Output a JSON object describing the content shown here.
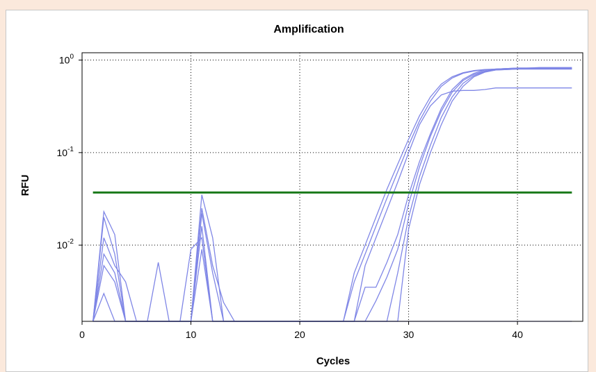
{
  "chart_data": {
    "type": "line",
    "title": "Amplification",
    "xlabel": "Cycles",
    "ylabel": "RFU",
    "xlim": [
      0,
      46
    ],
    "ylim": [
      0.0015,
      1.2
    ],
    "yscale": "log",
    "grid": true,
    "x_ticks": [
      {
        "value": 0,
        "label": "0"
      },
      {
        "value": 10,
        "label": "10"
      },
      {
        "value": 20,
        "label": "20"
      },
      {
        "value": 30,
        "label": "30"
      },
      {
        "value": 40,
        "label": "40"
      }
    ],
    "y_ticks": [
      {
        "value": 1,
        "base": "10",
        "exp": "0"
      },
      {
        "value": 0.1,
        "base": "10",
        "exp": "-1"
      },
      {
        "value": 0.01,
        "base": "10",
        "exp": "-2"
      }
    ],
    "threshold": {
      "value": 0.037,
      "x": [
        1,
        45
      ],
      "color": "#1a7a1a"
    },
    "series_color": "#7f86e6",
    "series": [
      {
        "x": [
          1,
          2,
          3,
          4,
          5,
          6,
          7,
          8,
          9,
          10,
          11,
          12,
          13,
          14,
          15,
          16,
          17,
          18,
          19,
          20,
          21,
          22,
          23,
          24,
          25,
          26,
          27,
          28,
          29,
          30,
          31,
          32,
          33,
          34,
          35,
          36,
          37,
          38,
          39,
          40,
          41,
          42,
          43,
          44,
          45
        ],
        "y": [
          0.0015,
          0.023,
          0.013,
          0.0015,
          0.0015,
          0.0015,
          0.0015,
          0.0015,
          0.0015,
          0.0015,
          0.035,
          0.012,
          0.0015,
          0.0015,
          0.0015,
          0.0015,
          0.0015,
          0.0015,
          0.0015,
          0.0015,
          0.0015,
          0.0015,
          0.0015,
          0.0015,
          0.004,
          0.008,
          0.016,
          0.032,
          0.062,
          0.12,
          0.22,
          0.36,
          0.52,
          0.64,
          0.72,
          0.76,
          0.78,
          0.8,
          0.81,
          0.82,
          0.82,
          0.83,
          0.83,
          0.83,
          0.83
        ]
      },
      {
        "x": [
          1,
          2,
          3,
          4,
          5,
          6,
          7,
          8,
          9,
          10,
          11,
          12,
          13,
          14,
          15,
          16,
          17,
          18,
          19,
          20,
          21,
          22,
          23,
          24,
          25,
          26,
          27,
          28,
          29,
          30,
          31,
          32,
          33,
          34,
          35,
          36,
          37,
          38,
          39,
          40,
          41,
          42,
          43,
          44,
          45
        ],
        "y": [
          0.0015,
          0.02,
          0.008,
          0.0015,
          0.0015,
          0.0015,
          0.0015,
          0.0015,
          0.0015,
          0.0015,
          0.025,
          0.006,
          0.0024,
          0.0015,
          0.0015,
          0.0015,
          0.0015,
          0.0015,
          0.0015,
          0.0015,
          0.0015,
          0.0015,
          0.0015,
          0.0015,
          0.005,
          0.01,
          0.02,
          0.04,
          0.075,
          0.14,
          0.25,
          0.4,
          0.55,
          0.66,
          0.73,
          0.77,
          0.79,
          0.8,
          0.81,
          0.82,
          0.82,
          0.82,
          0.82,
          0.82,
          0.82
        ]
      },
      {
        "x": [
          1,
          2,
          3,
          4,
          5,
          6,
          7,
          8,
          9,
          10,
          11,
          12,
          13,
          14,
          15,
          16,
          17,
          18,
          19,
          20,
          21,
          22,
          23,
          24,
          25,
          26,
          27,
          28,
          29,
          30,
          31,
          32,
          33,
          34,
          35,
          36,
          37,
          38,
          39,
          40,
          41,
          42,
          43,
          44,
          45
        ],
        "y": [
          0.0015,
          0.012,
          0.006,
          0.004,
          0.0015,
          0.0015,
          0.0065,
          0.0015,
          0.0015,
          0.0015,
          0.016,
          0.0015,
          0.0015,
          0.0015,
          0.0015,
          0.0015,
          0.0015,
          0.0015,
          0.0015,
          0.0015,
          0.0015,
          0.0015,
          0.0015,
          0.0015,
          0.0015,
          0.0035,
          0.0035,
          0.0065,
          0.013,
          0.035,
          0.08,
          0.16,
          0.3,
          0.48,
          0.62,
          0.72,
          0.78,
          0.8,
          0.81,
          0.81,
          0.82,
          0.82,
          0.82,
          0.82,
          0.82
        ]
      },
      {
        "x": [
          1,
          2,
          3,
          4,
          5,
          6,
          7,
          8,
          9,
          10,
          11,
          12,
          13,
          14,
          15,
          16,
          17,
          18,
          19,
          20,
          21,
          22,
          23,
          24,
          25,
          26,
          27,
          28,
          29,
          30,
          31,
          32,
          33,
          34,
          35,
          36,
          37,
          38,
          39,
          40,
          41,
          42,
          43,
          44,
          45
        ],
        "y": [
          0.0015,
          0.008,
          0.005,
          0.0015,
          0.0015,
          0.0015,
          0.0015,
          0.0015,
          0.0015,
          0.009,
          0.012,
          0.0015,
          0.0015,
          0.0015,
          0.0015,
          0.0015,
          0.0015,
          0.0015,
          0.0015,
          0.0015,
          0.0015,
          0.0015,
          0.0015,
          0.0015,
          0.0015,
          0.0015,
          0.0025,
          0.0045,
          0.009,
          0.028,
          0.07,
          0.15,
          0.28,
          0.45,
          0.6,
          0.7,
          0.76,
          0.79,
          0.8,
          0.81,
          0.81,
          0.81,
          0.81,
          0.81,
          0.81
        ]
      },
      {
        "x": [
          1,
          2,
          3,
          4,
          5,
          6,
          7,
          8,
          9,
          10,
          11,
          12,
          13,
          14,
          15,
          16,
          17,
          18,
          19,
          20,
          21,
          22,
          23,
          24,
          25,
          26,
          27,
          28,
          29,
          30,
          31,
          32,
          33,
          34,
          35,
          36,
          37,
          38,
          39,
          40,
          41,
          42,
          43,
          44,
          45
        ],
        "y": [
          0.0015,
          0.006,
          0.004,
          0.0015,
          0.0015,
          0.0015,
          0.0015,
          0.0015,
          0.0015,
          0.0015,
          0.022,
          0.005,
          0.0015,
          0.0015,
          0.0015,
          0.0015,
          0.0015,
          0.0015,
          0.0015,
          0.0015,
          0.0015,
          0.0015,
          0.0015,
          0.0015,
          0.0015,
          0.0015,
          0.0015,
          0.0015,
          0.005,
          0.02,
          0.055,
          0.12,
          0.24,
          0.4,
          0.56,
          0.68,
          0.75,
          0.78,
          0.79,
          0.8,
          0.8,
          0.8,
          0.8,
          0.8,
          0.8
        ]
      },
      {
        "x": [
          1,
          2,
          3,
          4,
          5,
          6,
          7,
          8,
          9,
          10,
          11,
          12,
          13,
          14,
          15,
          16,
          17,
          18,
          19,
          20,
          21,
          22,
          23,
          24,
          25,
          26,
          27,
          28,
          29,
          30,
          31,
          32,
          33,
          34,
          35,
          36,
          37,
          38,
          39,
          40,
          41,
          42,
          43,
          44,
          45
        ],
        "y": [
          0.0015,
          0.003,
          0.0015,
          0.0015,
          0.0015,
          0.0015,
          0.0015,
          0.0015,
          0.0015,
          0.0015,
          0.009,
          0.0015,
          0.0015,
          0.0015,
          0.0015,
          0.0015,
          0.0015,
          0.0015,
          0.0015,
          0.0015,
          0.0015,
          0.0015,
          0.0015,
          0.0015,
          0.0015,
          0.0015,
          0.0015,
          0.0015,
          0.0015,
          0.015,
          0.045,
          0.1,
          0.2,
          0.36,
          0.52,
          0.66,
          0.74,
          0.78,
          0.79,
          0.8,
          0.8,
          0.8,
          0.8,
          0.8,
          0.8
        ]
      },
      {
        "x": [
          1,
          2,
          3,
          4,
          5,
          6,
          7,
          8,
          9,
          10,
          11,
          12,
          13,
          14,
          15,
          16,
          17,
          18,
          19,
          20,
          21,
          22,
          23,
          24,
          25,
          26,
          27,
          28,
          29,
          30,
          31,
          32,
          33,
          34,
          35,
          36,
          37,
          38,
          39,
          40,
          41,
          42,
          43,
          44,
          45
        ],
        "y": [
          0.0015,
          0.0015,
          0.0015,
          0.0015,
          0.0015,
          0.0015,
          0.0015,
          0.0015,
          0.0015,
          0.0015,
          0.0015,
          0.0015,
          0.0015,
          0.0015,
          0.0015,
          0.0015,
          0.0015,
          0.0015,
          0.0015,
          0.0015,
          0.0015,
          0.0015,
          0.0015,
          0.0015,
          0.0015,
          0.006,
          0.012,
          0.024,
          0.048,
          0.1,
          0.2,
          0.32,
          0.42,
          0.46,
          0.47,
          0.47,
          0.48,
          0.5,
          0.5,
          0.5,
          0.5,
          0.5,
          0.5,
          0.5,
          0.5
        ]
      },
      {
        "x": [
          1,
          2,
          3,
          4,
          5,
          6,
          7,
          8,
          9,
          10,
          11,
          12,
          13,
          14,
          15,
          16,
          17,
          18,
          19,
          20,
          21,
          22,
          23,
          24,
          25,
          26,
          27,
          28,
          29,
          30,
          31,
          32,
          33,
          34,
          35,
          36,
          37,
          38,
          39,
          40,
          41,
          42,
          43,
          44,
          45
        ],
        "y": [
          0.0015,
          0.0015,
          0.0015,
          0.0015,
          0.0015,
          0.0015,
          0.0015,
          0.0015,
          0.0015,
          0.0015,
          0.0015,
          0.0015,
          0.0015,
          0.0015,
          0.0015,
          0.0015,
          0.0015,
          0.0015,
          0.0015,
          0.0015,
          0.0015,
          0.0015,
          0.0015,
          0.0015,
          0.0015,
          0.0015,
          0.0015,
          0.0015,
          0.0015,
          0.0015,
          0.0015,
          0.0015,
          0.0015,
          0.0015,
          0.0015,
          0.0015,
          0.0015,
          0.0015,
          0.0015,
          0.0015,
          0.0015,
          0.0015,
          0.0015,
          0.0015,
          0.0015
        ]
      }
    ]
  }
}
